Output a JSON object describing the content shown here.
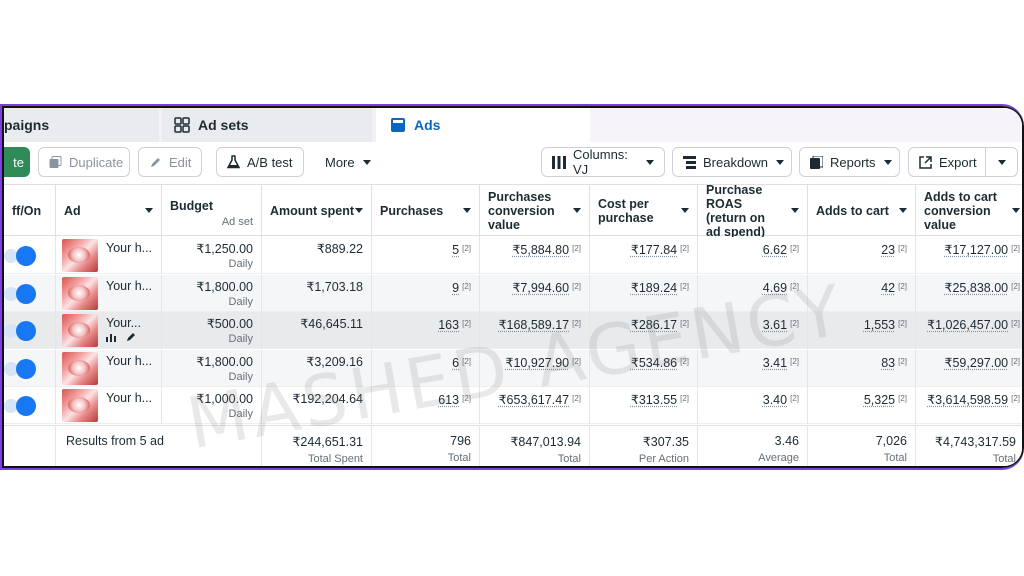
{
  "tabs": [
    {
      "label": "paigns"
    },
    {
      "label": "Ad sets"
    },
    {
      "label": "Ads"
    }
  ],
  "toolbar": {
    "create_label": "te",
    "duplicate_label": "Duplicate",
    "edit_label": "Edit",
    "abtest_label": "A/B test",
    "more_label": "More",
    "columns_label": "Columns: VJ",
    "breakdown_label": "Breakdown",
    "reports_label": "Reports",
    "export_label": "Export"
  },
  "columns": {
    "offon": "ff/On",
    "ad": "Ad",
    "budget": "Budget",
    "budget_sub": "Ad set",
    "amount_spent": "Amount spent",
    "purchases": "Purchases",
    "purchases_conv_value": "Purchases conversion value",
    "cost_per_purchase": "Cost per purchase",
    "purchase_roas": "Purchase ROAS (return on ad spend)",
    "adds_to_cart": "Adds to cart",
    "adds_to_cart_conv_value": "Adds to cart conversion value"
  },
  "rows": [
    {
      "name": "Your h...",
      "budget": "₹1,250.00",
      "budget_type": "Daily",
      "amount_spent": "₹889.22",
      "purchases": "5",
      "conv_value": "₹5,884.80",
      "cost_per_purchase": "₹177.84",
      "roas": "6.62",
      "adds_to_cart": "23",
      "atc_value": "₹17,127.00"
    },
    {
      "name": "Your h...",
      "budget": "₹1,800.00",
      "budget_type": "Daily",
      "amount_spent": "₹1,703.18",
      "purchases": "9",
      "conv_value": "₹7,994.60",
      "cost_per_purchase": "₹189.24",
      "roas": "4.69",
      "adds_to_cart": "42",
      "atc_value": "₹25,838.00"
    },
    {
      "name": "Your...",
      "budget": "₹500.00",
      "budget_type": "Daily",
      "amount_spent": "₹46,645.11",
      "purchases": "163",
      "conv_value": "₹168,589.17",
      "cost_per_purchase": "₹286.17",
      "roas": "3.61",
      "adds_to_cart": "1,553",
      "atc_value": "₹1,026,457.00"
    },
    {
      "name": "Your h...",
      "budget": "₹1,800.00",
      "budget_type": "Daily",
      "amount_spent": "₹3,209.16",
      "purchases": "6",
      "conv_value": "₹10,927.90",
      "cost_per_purchase": "₹534.86",
      "roas": "3.41",
      "adds_to_cart": "83",
      "atc_value": "₹59,297.00"
    },
    {
      "name": "Your h...",
      "budget": "₹1,000.00",
      "budget_type": "Daily",
      "amount_spent": "₹192,204.64",
      "purchases": "613",
      "conv_value": "₹653,617.47",
      "cost_per_purchase": "₹313.55",
      "roas": "3.40",
      "adds_to_cart": "5,325",
      "atc_value": "₹3,614,598.59"
    }
  ],
  "attribution_marker": "[2]",
  "footer": {
    "results_label": "Results from 5 ad",
    "amount_spent": "₹244,651.31",
    "amount_spent_sub": "Total Spent",
    "purchases": "796",
    "purchases_sub": "Total",
    "conv_value": "₹847,013.94",
    "conv_value_sub": "Total",
    "cost_per_purchase": "₹307.35",
    "cost_per_purchase_sub": "Per Action",
    "roas": "3.46",
    "roas_sub": "Average",
    "adds_to_cart": "7,026",
    "adds_to_cart_sub": "Total",
    "atc_value": "₹4,743,317.59",
    "atc_value_sub": "Total"
  },
  "watermark": "MASHED AGENCY",
  "colors": {
    "accent": "#1877f2",
    "frame": "#7b3fe4",
    "create": "#2e8b57"
  }
}
